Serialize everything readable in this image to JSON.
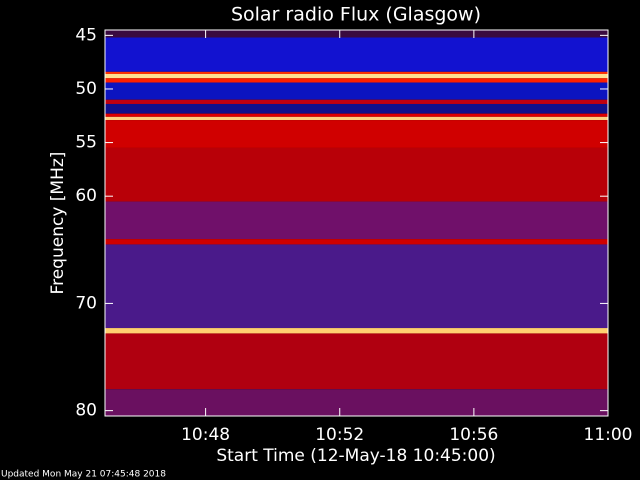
{
  "chart_data": {
    "type": "spectrogram",
    "title": "Solar radio Flux (Glasgow)",
    "y_label": "Frequency [MHz]",
    "x_label": "Start Time (12-May-18 10:45:00)",
    "footer": "Updated Mon May 21 07:45:48 2018",
    "xlim": [
      645,
      660
    ],
    "xticks": [
      {
        "value": 648,
        "label": "10:48"
      },
      {
        "value": 652,
        "label": "10:52"
      },
      {
        "value": 656,
        "label": "10:56"
      },
      {
        "value": 660,
        "label": "11:00"
      }
    ],
    "ylim": [
      80.5,
      44.5
    ],
    "yticks": [
      45,
      50,
      55,
      60,
      70,
      80
    ],
    "bands": [
      {
        "from": 44.5,
        "to": 45.2,
        "color": "#3a0a40"
      },
      {
        "from": 45.2,
        "to": 48.4,
        "color": "#1212d0"
      },
      {
        "from": 48.4,
        "to": 48.6,
        "color": "#ff3000"
      },
      {
        "from": 48.6,
        "to": 49.0,
        "color": "#ffe090"
      },
      {
        "from": 49.0,
        "to": 49.4,
        "color": "#ff2000"
      },
      {
        "from": 49.4,
        "to": 51.0,
        "color": "#0c14c0"
      },
      {
        "from": 51.0,
        "to": 51.4,
        "color": "#c00010"
      },
      {
        "from": 51.4,
        "to": 52.3,
        "color": "#10108c"
      },
      {
        "from": 52.3,
        "to": 52.6,
        "color": "#e00000"
      },
      {
        "from": 52.6,
        "to": 52.9,
        "color": "#ffd080"
      },
      {
        "from": 52.9,
        "to": 55.5,
        "color": "#d00000"
      },
      {
        "from": 55.5,
        "to": 60.5,
        "color": "#b80008"
      },
      {
        "from": 60.5,
        "to": 64.0,
        "color": "#70106a"
      },
      {
        "from": 64.0,
        "to": 64.5,
        "color": "#d00000"
      },
      {
        "from": 64.5,
        "to": 72.3,
        "color": "#4a1a8a"
      },
      {
        "from": 72.3,
        "to": 72.8,
        "color": "#ffd070"
      },
      {
        "from": 72.8,
        "to": 78.0,
        "color": "#b00010"
      },
      {
        "from": 78.0,
        "to": 80.5,
        "color": "#6a1060"
      }
    ]
  }
}
